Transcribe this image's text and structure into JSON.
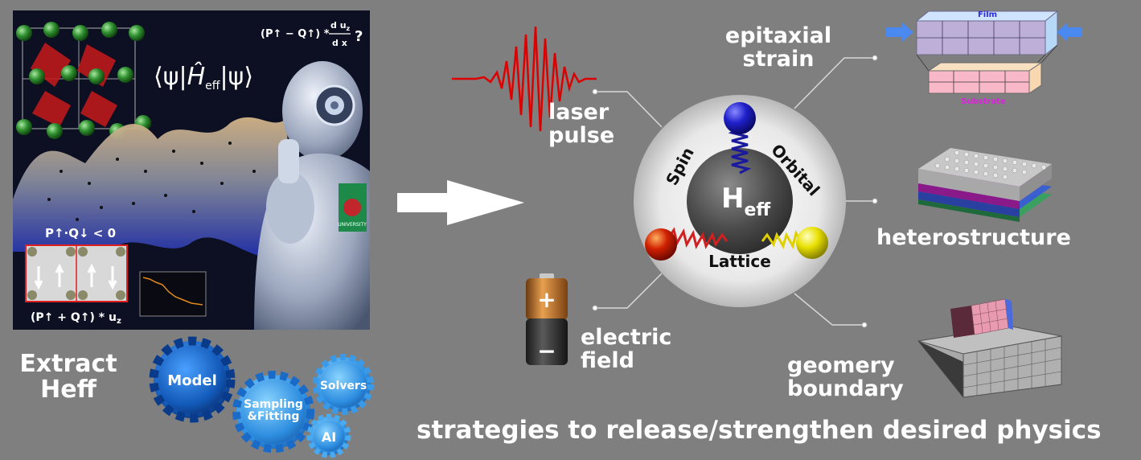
{
  "left_panel": {
    "formula_top_left": "(P↑ − Q↑) *",
    "formula_top_num": "d u",
    "formula_top_num_sub": "z",
    "formula_top_den": "d x",
    "formula_top_q": "?",
    "bra": "⟨ψ|",
    "ham": "Ĥ",
    "ham_sub": "eff",
    "ket": "|ψ⟩",
    "ineq": "P↑·Q↓ < 0",
    "formula_bottom": "(P↑ + Q↑) * u",
    "formula_bottom_sub": "z",
    "logo_text": "UNIVERSITY",
    "extract_title": "Extract\nHeff"
  },
  "gears": {
    "model": "Model",
    "sampling": "Sampling\n&Fitting",
    "solvers": "Solvers",
    "ai": "AI"
  },
  "center": {
    "core_main": "H",
    "core_sub": "eff",
    "spin": "Spin",
    "orbital": "Orbital",
    "lattice": "Lattice"
  },
  "labels": {
    "laser": "laser\npulse",
    "electric": "electric\nfield",
    "epitaxial": "epitaxial\nstrain",
    "heterostructure": "heterostructure",
    "geometry": "geomery\nboundary",
    "film": "Film",
    "substrate": "Substrate",
    "battery_plus": "+",
    "battery_minus": "−"
  },
  "footer": "strategies to release/strengthen desired physics",
  "colors": {
    "background": "#7f7f7f",
    "text": "#ffffff",
    "laser": "#dd0000",
    "gear": "#1a66c8",
    "spin_ball": "#2222cc",
    "lattice_ball": "#cc2200",
    "orbital_ball": "#e0e000"
  }
}
